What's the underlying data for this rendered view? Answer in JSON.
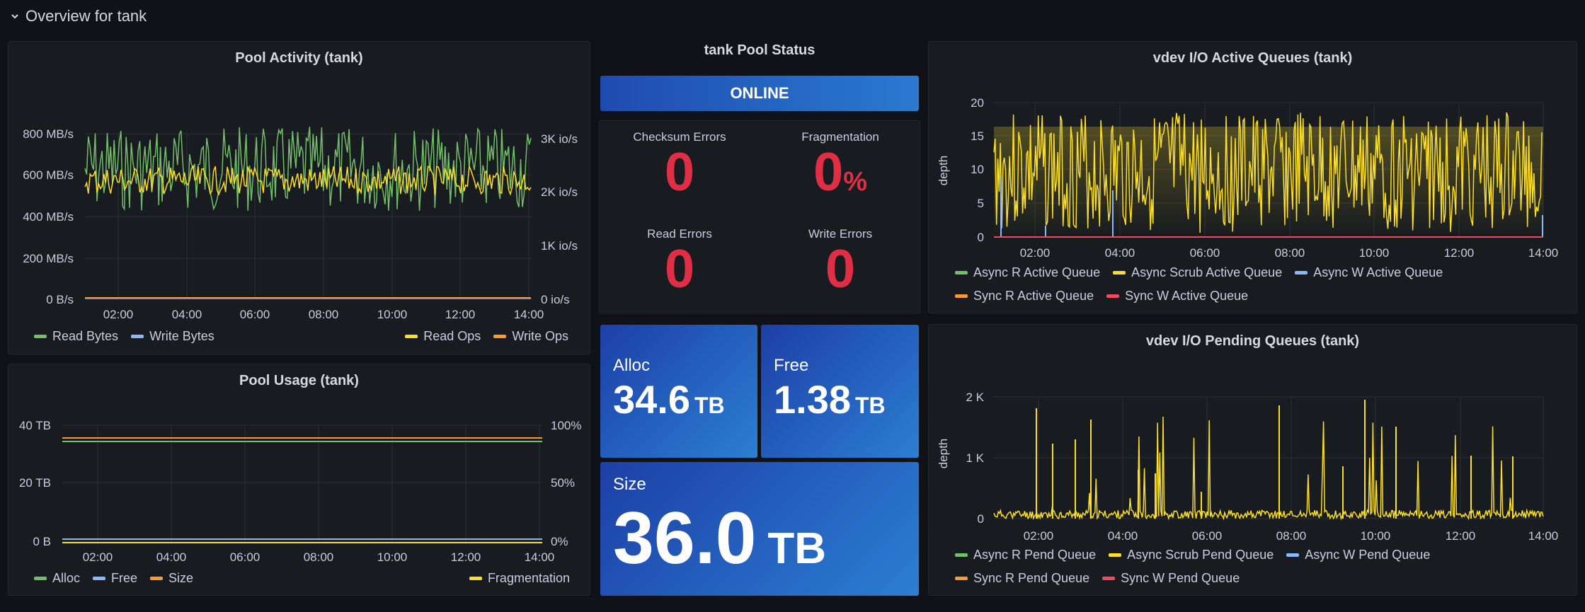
{
  "row": {
    "title": "Overview for tank"
  },
  "pool_activity": {
    "title": "Pool Activity (tank)",
    "left_ticks": [
      "800 MB/s",
      "600 MB/s",
      "400 MB/s",
      "200 MB/s",
      "0 B/s"
    ],
    "right_ticks": [
      "3K io/s",
      "2K io/s",
      "1K io/s",
      "0 io/s"
    ],
    "x_ticks": [
      "02:00",
      "04:00",
      "06:00",
      "08:00",
      "10:00",
      "12:00",
      "14:00"
    ],
    "legend_left": [
      {
        "name": "Read Bytes",
        "color": "#73bf69"
      },
      {
        "name": "Write Bytes",
        "color": "#8ab8ff"
      }
    ],
    "legend_right": [
      {
        "name": "Read Ops",
        "color": "#fade2a"
      },
      {
        "name": "Write Ops",
        "color": "#ff9830"
      }
    ]
  },
  "pool_usage": {
    "title": "Pool Usage (tank)",
    "left_ticks": [
      "40 TB",
      "20 TB",
      "0 B"
    ],
    "right_ticks": [
      "100%",
      "50%",
      "0%"
    ],
    "x_ticks": [
      "02:00",
      "04:00",
      "06:00",
      "08:00",
      "10:00",
      "12:00",
      "14:00"
    ],
    "legend_left": [
      {
        "name": "Alloc",
        "color": "#73bf69"
      },
      {
        "name": "Free",
        "color": "#8ab8ff"
      },
      {
        "name": "Size",
        "color": "#ff9830"
      }
    ],
    "legend_right": [
      {
        "name": "Fragmentation",
        "color": "#fade2a"
      }
    ]
  },
  "status": {
    "title": "tank Pool Status",
    "state": "ONLINE",
    "checksum_errors": {
      "label": "Checksum Errors",
      "value": "0"
    },
    "fragmentation": {
      "label": "Fragmentation",
      "value": "0",
      "unit": "%"
    },
    "read_errors": {
      "label": "Read Errors",
      "value": "0"
    },
    "write_errors": {
      "label": "Write Errors",
      "value": "0"
    }
  },
  "capacity": {
    "alloc": {
      "label": "Alloc",
      "value": "34.6",
      "unit": "TB"
    },
    "free": {
      "label": "Free",
      "value": "1.38",
      "unit": "TB"
    },
    "size": {
      "label": "Size",
      "value": "36.0",
      "unit": "TB"
    }
  },
  "active_queues": {
    "title": "vdev I/O Active Queues (tank)",
    "ylabel": "depth",
    "y_ticks": [
      "20",
      "15",
      "10",
      "5",
      "0"
    ],
    "x_ticks": [
      "02:00",
      "04:00",
      "06:00",
      "08:00",
      "10:00",
      "12:00",
      "14:00"
    ],
    "legend_row1": [
      {
        "name": "Async R Active Queue",
        "color": "#73bf69"
      },
      {
        "name": "Async Scrub Active Queue",
        "color": "#fade2a"
      },
      {
        "name": "Async W Active Queue",
        "color": "#8ab8ff"
      }
    ],
    "legend_row2": [
      {
        "name": "Sync R Active Queue",
        "color": "#ff9830"
      },
      {
        "name": "Sync W Active Queue",
        "color": "#f2495c"
      }
    ]
  },
  "pending_queues": {
    "title": "vdev I/O Pending Queues (tank)",
    "ylabel": "depth",
    "y_ticks": [
      "2 K",
      "1 K",
      "0"
    ],
    "x_ticks": [
      "02:00",
      "04:00",
      "06:00",
      "08:00",
      "10:00",
      "12:00",
      "14:00"
    ],
    "legend_row1": [
      {
        "name": "Async R Pend Queue",
        "color": "#73bf69"
      },
      {
        "name": "Async Scrub Pend Queue",
        "color": "#fade2a"
      },
      {
        "name": "Async W Pend Queue",
        "color": "#8ab8ff"
      }
    ],
    "legend_row2": [
      {
        "name": "Sync R Pend Queue",
        "color": "#ff9830"
      },
      {
        "name": "Sync W Pend Queue",
        "color": "#f2495c"
      }
    ]
  },
  "chart_data": [
    {
      "type": "line",
      "title": "Pool Activity (tank)",
      "x": [
        "02:00",
        "04:00",
        "06:00",
        "08:00",
        "10:00",
        "12:00",
        "14:00"
      ],
      "ylim": [
        0,
        800
      ],
      "y2lim": [
        0,
        3000
      ],
      "series": [
        {
          "name": "Read Bytes",
          "axis": "left",
          "values": [
            760,
            720,
            780,
            690,
            720,
            650,
            620
          ]
        },
        {
          "name": "Write Bytes",
          "axis": "left",
          "values": [
            0,
            0,
            0,
            0,
            0,
            0,
            0
          ]
        },
        {
          "name": "Read Ops",
          "axis": "right",
          "values": [
            2200,
            2100,
            2250,
            2100,
            2150,
            2200,
            2050
          ]
        },
        {
          "name": "Write Ops",
          "axis": "right",
          "values": [
            20,
            20,
            20,
            20,
            20,
            20,
            20
          ]
        }
      ]
    },
    {
      "type": "line",
      "title": "Pool Usage (tank)",
      "x": [
        "02:00",
        "04:00",
        "06:00",
        "08:00",
        "10:00",
        "12:00",
        "14:00"
      ],
      "ylim": [
        0,
        40
      ],
      "series": [
        {
          "name": "Alloc",
          "values": [
            34.6,
            34.6,
            34.6,
            34.6,
            34.6,
            34.6,
            34.6
          ]
        },
        {
          "name": "Free",
          "values": [
            1.38,
            1.38,
            1.38,
            1.38,
            1.38,
            1.38,
            1.38
          ]
        },
        {
          "name": "Size",
          "values": [
            36.0,
            36.0,
            36.0,
            36.0,
            36.0,
            36.0,
            36.0
          ]
        },
        {
          "name": "Fragmentation",
          "values": [
            0,
            0,
            0,
            0,
            0,
            0,
            0
          ]
        }
      ]
    },
    {
      "type": "line",
      "title": "vdev I/O Active Queues (tank)",
      "x": [
        "02:00",
        "04:00",
        "06:00",
        "08:00",
        "10:00",
        "12:00",
        "14:00"
      ],
      "ylim": [
        0,
        20
      ],
      "series": [
        {
          "name": "Async Scrub Active Queue",
          "values": [
            11,
            10,
            12,
            10,
            11,
            10,
            11
          ]
        },
        {
          "name": "Async W Active Queue",
          "values": [
            0,
            0,
            0,
            0,
            0,
            0,
            0
          ]
        },
        {
          "name": "Sync W Active Queue",
          "values": [
            0,
            0,
            0,
            0,
            0,
            0,
            0
          ]
        }
      ]
    },
    {
      "type": "line",
      "title": "vdev I/O Pending Queues (tank)",
      "x": [
        "02:00",
        "04:00",
        "06:00",
        "08:00",
        "10:00",
        "12:00",
        "14:00"
      ],
      "ylim": [
        0,
        2000
      ],
      "series": [
        {
          "name": "Async Scrub Pend Queue",
          "values": [
            60,
            50,
            40,
            80,
            60,
            50,
            40
          ]
        }
      ]
    }
  ]
}
